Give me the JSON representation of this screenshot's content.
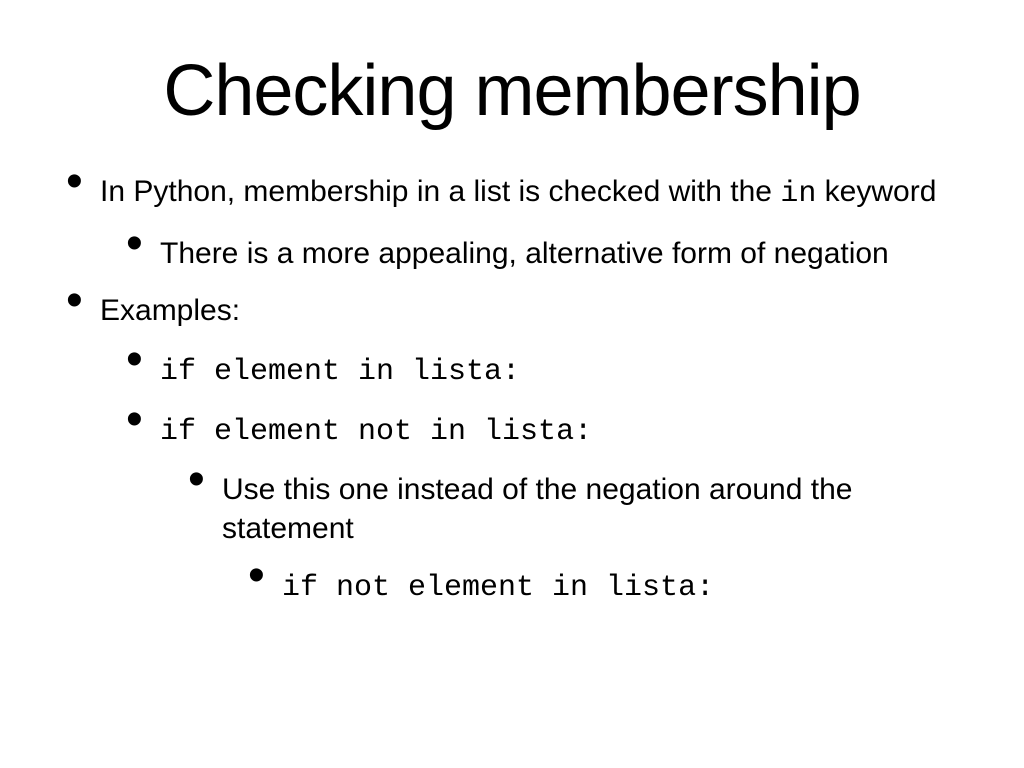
{
  "title": "Checking membership",
  "body_font_family": "Arial, Helvetica, sans-serif",
  "mono_font_family": "Courier New, Courier, monospace",
  "title_fontsize": 72,
  "body_fontsize": 30,
  "text_color": "#000000",
  "background_color": "#ffffff",
  "bullets": {
    "b1_pre": "In Python, membership in a list is checked with the ",
    "b1_code": "in",
    "b1_post": " keyword",
    "b1_1": "There is a more appealing, alternative form of negation",
    "b2": "Examples:",
    "b2_1": "if element in lista:",
    "b2_2": "if element not in lista:",
    "b2_2_1": "Use this one instead of the negation around the statement",
    "b2_2_1_1": "if not element in lista:"
  }
}
